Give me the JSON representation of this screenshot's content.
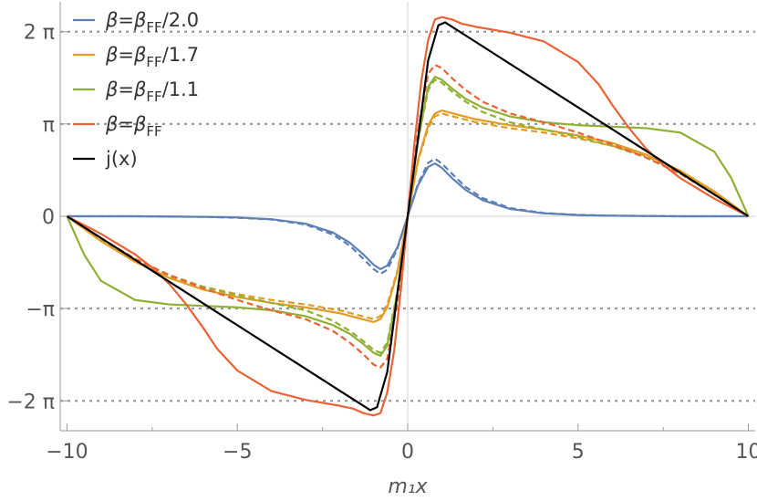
{
  "chart_data": {
    "type": "line",
    "xlabel": "m₁x",
    "xlim": [
      -10.2,
      10.2
    ],
    "ylim": [
      -7.3,
      7.3
    ],
    "x_ticks": [
      {
        "value": -10,
        "label": "−10"
      },
      {
        "value": -5,
        "label": "−5"
      },
      {
        "value": 0,
        "label": "0"
      },
      {
        "value": 5,
        "label": "5"
      },
      {
        "value": 10,
        "label": "10"
      }
    ],
    "y_ticks": [
      {
        "value": 6.2832,
        "label": "2 π"
      },
      {
        "value": 3.1416,
        "label": "π"
      },
      {
        "value": 0,
        "label": "0"
      },
      {
        "value": -3.1416,
        "label": "−π"
      },
      {
        "value": -6.2832,
        "label": "−2 π"
      }
    ],
    "reference_lines_y": [
      6.2832,
      3.1416,
      -3.1416,
      -6.2832
    ],
    "legend": [
      {
        "label": "β=β_FF/2.0",
        "color": "#5e81b5"
      },
      {
        "label": "β=β_FF/1.7",
        "color": "#e19c24"
      },
      {
        "label": "β=β_FF/1.1",
        "color": "#8fb032"
      },
      {
        "label": "β=β_FF",
        "color": "#eb6235"
      },
      {
        "label": "j(x)",
        "color": "#000000"
      }
    ],
    "series": [
      {
        "name": "β=β_FF/2.0 (solid)",
        "color": "#5e81b5",
        "dashed": false,
        "x": [
          0,
          0.3,
          0.6,
          0.8,
          1.0,
          1.3,
          1.7,
          2.2,
          3.0,
          4.0,
          5.0,
          6.0,
          8.0,
          10.0
        ],
        "y": [
          0,
          1.05,
          1.68,
          1.8,
          1.65,
          1.3,
          0.9,
          0.55,
          0.25,
          0.1,
          0.04,
          0.02,
          0.0,
          0.0
        ]
      },
      {
        "name": "β=β_FF/2.0 (dashed)",
        "color": "#5e81b5",
        "dashed": true,
        "x": [
          0,
          0.3,
          0.6,
          0.8,
          1.0,
          1.3,
          1.7,
          2.2,
          3.0,
          4.0,
          5.0,
          6.0,
          8.0,
          10.0
        ],
        "y": [
          0,
          1.1,
          1.82,
          1.96,
          1.8,
          1.45,
          1.0,
          0.62,
          0.28,
          0.11,
          0.05,
          0.02,
          0.0,
          0.0
        ]
      },
      {
        "name": "β=β_FF/1.7 (solid)",
        "color": "#e19c24",
        "dashed": false,
        "x": [
          0,
          0.3,
          0.6,
          0.8,
          1.0,
          1.5,
          2.0,
          3.0,
          4.0,
          5.0,
          6.0,
          7.0,
          8.0,
          9.0,
          10.0
        ],
        "y": [
          0,
          1.9,
          3.1,
          3.5,
          3.6,
          3.45,
          3.3,
          3.1,
          2.95,
          2.75,
          2.5,
          2.1,
          1.55,
          0.85,
          0.0
        ]
      },
      {
        "name": "β=β_FF/1.7 (dashed)",
        "color": "#e19c24",
        "dashed": true,
        "x": [
          0,
          0.3,
          0.6,
          0.8,
          1.0,
          1.5,
          2.0,
          3.0,
          4.0,
          5.0,
          6.0,
          7.0,
          8.0,
          9.0,
          10.0
        ],
        "y": [
          0,
          1.85,
          3.0,
          3.4,
          3.5,
          3.35,
          3.2,
          3.0,
          2.85,
          2.65,
          2.4,
          2.05,
          1.5,
          0.82,
          0.0
        ]
      },
      {
        "name": "β=β_FF/1.1 (solid)",
        "color": "#8fb032",
        "dashed": false,
        "x": [
          0,
          0.3,
          0.6,
          0.8,
          1.0,
          1.3,
          1.7,
          2.2,
          3.0,
          4.0,
          5.0,
          6.0,
          7.0,
          8.0,
          9.0,
          9.5,
          10.0
        ],
        "y": [
          0,
          2.6,
          4.4,
          4.75,
          4.65,
          4.35,
          4.0,
          3.7,
          3.4,
          3.2,
          3.1,
          3.05,
          3.0,
          2.85,
          2.2,
          1.3,
          0.0
        ]
      },
      {
        "name": "β=β_FF/1.1 (dashed)",
        "color": "#8fb032",
        "dashed": true,
        "x": [
          0,
          0.3,
          0.6,
          0.8,
          1.0,
          1.3,
          1.7,
          2.2,
          3.0,
          4.0,
          5.0,
          6.0,
          7.0,
          8.0,
          9.0,
          10.0
        ],
        "y": [
          0,
          2.55,
          4.3,
          4.65,
          4.55,
          4.25,
          3.9,
          3.55,
          3.2,
          2.95,
          2.7,
          2.4,
          2.0,
          1.45,
          0.75,
          0.0
        ]
      },
      {
        "name": "β=β_FF (solid)",
        "color": "#eb6235",
        "dashed": false,
        "x": [
          0,
          0.2,
          0.4,
          0.6,
          0.8,
          1.0,
          1.3,
          1.6,
          2.0,
          3.0,
          4.0,
          5.0,
          5.6,
          6.0,
          6.5,
          7.0,
          7.5,
          8.0,
          9.0,
          10.0
        ],
        "y": [
          0,
          2.5,
          4.6,
          6.0,
          6.7,
          6.78,
          6.7,
          6.55,
          6.45,
          6.25,
          5.95,
          5.25,
          4.5,
          3.8,
          3.0,
          2.3,
          1.75,
          1.3,
          0.6,
          0.0
        ]
      },
      {
        "name": "β=β_FF (dashed)",
        "color": "#eb6235",
        "dashed": true,
        "x": [
          0,
          0.3,
          0.6,
          0.8,
          1.0,
          1.3,
          1.7,
          2.2,
          3.0,
          4.0,
          5.0,
          6.0,
          7.0,
          8.0,
          9.0,
          10.0
        ],
        "y": [
          0,
          2.9,
          4.85,
          5.15,
          5.05,
          4.7,
          4.3,
          3.9,
          3.5,
          3.2,
          2.85,
          2.45,
          2.0,
          1.45,
          0.75,
          0.0
        ]
      },
      {
        "name": "j(x)",
        "color": "#000000",
        "dashed": false,
        "x": [
          0,
          0.3,
          0.6,
          0.9,
          1.1,
          10.0
        ],
        "y": [
          0,
          2.6,
          5.3,
          6.5,
          6.6,
          0.0
        ]
      }
    ]
  }
}
